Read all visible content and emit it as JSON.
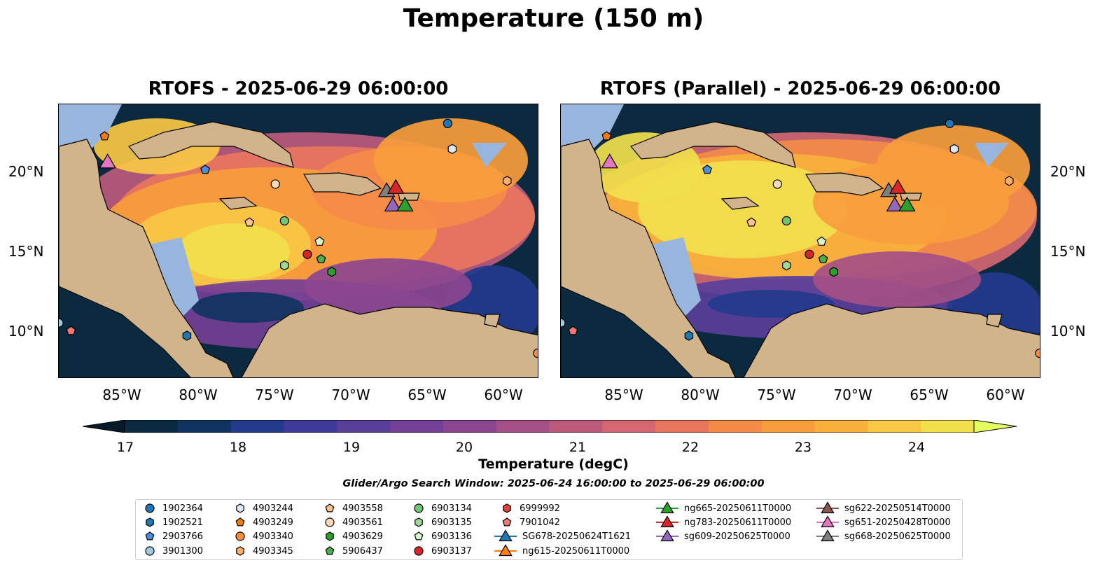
{
  "suptitle": "Temperature (150 m)",
  "panels": [
    {
      "title": "RTOFS - 2025-06-29 06:00:00"
    },
    {
      "title": "RTOFS (Parallel) - 2025-06-29 06:00:00"
    }
  ],
  "lon_ticks": [
    "85°W",
    "80°W",
    "75°W",
    "70°W",
    "65°W",
    "60°W"
  ],
  "lat_ticks": [
    "20°N",
    "15°N",
    "10°N"
  ],
  "colorbar": {
    "ticks": [
      "17",
      "18",
      "19",
      "20",
      "21",
      "22",
      "23",
      "24"
    ],
    "label": "Temperature (degC)",
    "range": [
      17,
      24.5
    ],
    "colors": [
      "#0b2a3f",
      "#10335f",
      "#243a8c",
      "#3e3a9a",
      "#5a3f9a",
      "#743f96",
      "#8c4690",
      "#a44f86",
      "#bd5a7c",
      "#d46770",
      "#e8765d",
      "#f58b49",
      "#f89d3c",
      "#f9b13c",
      "#f8c844",
      "#f1e04c"
    ],
    "extend_low": "#061a2a",
    "extend_high": "#e6ff60"
  },
  "search_window": "Glider/Argo Search Window: 2025-06-24 16:00:00 to 2025-06-29 06:00:00",
  "colors": {
    "land": "#d2b48c",
    "shelf": "#97b5dd",
    "ocean_deep": "#0b2a3f"
  },
  "legend": [
    {
      "label": "1902364",
      "marker": "circle",
      "color": "#1f77b4"
    },
    {
      "label": "1902521",
      "marker": "hexagon",
      "color": "#1f77b4"
    },
    {
      "label": "2903766",
      "marker": "pentagon",
      "color": "#4a90d9"
    },
    {
      "label": "3901300",
      "marker": "circle",
      "color": "#9ecae1"
    },
    {
      "label": "4903244",
      "marker": "hexagon",
      "color": "#dbe9f6"
    },
    {
      "label": "4903249",
      "marker": "pentagon",
      "color": "#f07c0c"
    },
    {
      "label": "4903340",
      "marker": "circle",
      "color": "#fd8d3c"
    },
    {
      "label": "4903345",
      "marker": "hexagon",
      "color": "#fdae6b"
    },
    {
      "label": "4903558",
      "marker": "pentagon",
      "color": "#fdc38d"
    },
    {
      "label": "4903561",
      "marker": "circle",
      "color": "#fdd9b5"
    },
    {
      "label": "4903629",
      "marker": "hexagon",
      "color": "#2ca02c"
    },
    {
      "label": "5906437",
      "marker": "pentagon",
      "color": "#4cae4c"
    },
    {
      "label": "6903134",
      "marker": "circle",
      "color": "#74c476"
    },
    {
      "label": "6903135",
      "marker": "hexagon",
      "color": "#a1d99b"
    },
    {
      "label": "6903136",
      "marker": "pentagon",
      "color": "#d4f5c8"
    },
    {
      "label": "6903137",
      "marker": "circle",
      "color": "#d62728"
    },
    {
      "label": "6999992",
      "marker": "hexagon",
      "color": "#e0413b"
    },
    {
      "label": "7901042",
      "marker": "pentagon",
      "color": "#f07575"
    },
    {
      "label": "SG678-20250624T1621",
      "marker": "triangle",
      "color": "#1f77b4"
    },
    {
      "label": "ng615-20250611T0000",
      "marker": "triangle",
      "color": "#ff7f0e"
    },
    {
      "label": "ng665-20250611T0000",
      "marker": "triangle",
      "color": "#2ca02c"
    },
    {
      "label": "ng783-20250611T0000",
      "marker": "triangle",
      "color": "#d62728"
    },
    {
      "label": "sg609-20250625T0000",
      "marker": "triangle",
      "color": "#9467bd"
    },
    {
      "label": "sg622-20250514T0000",
      "marker": "triangle",
      "color": "#8c564b"
    },
    {
      "label": "sg651-20250428T0000",
      "marker": "triangle",
      "color": "#e377c2"
    },
    {
      "label": "sg668-20250625T0000",
      "marker": "triangle",
      "color": "#7f7f7f"
    }
  ],
  "map_extent": {
    "lon": [
      -89,
      -57.5
    ],
    "lat": [
      7,
      24.2
    ]
  },
  "observations": [
    {
      "label": "1902364",
      "lon": -63.5,
      "lat": 23.0
    },
    {
      "label": "4903244",
      "lon": -63.2,
      "lat": 21.4
    },
    {
      "label": "4903249",
      "lon": -86.0,
      "lat": 22.2
    },
    {
      "label": "2903766",
      "lon": -79.4,
      "lat": 20.1
    },
    {
      "label": "4903561",
      "lon": -74.8,
      "lat": 19.2
    },
    {
      "label": "4903345",
      "lon": -59.6,
      "lat": 19.4
    },
    {
      "label": "4903558",
      "lon": -76.5,
      "lat": 16.8
    },
    {
      "label": "6903134",
      "lon": -74.2,
      "lat": 16.9
    },
    {
      "label": "6903137",
      "lon": -72.7,
      "lat": 14.8
    },
    {
      "label": "6903136",
      "lon": -71.9,
      "lat": 15.6
    },
    {
      "label": "6903135",
      "lon": -74.2,
      "lat": 14.1
    },
    {
      "label": "5906437",
      "lon": -71.8,
      "lat": 14.5
    },
    {
      "label": "4903629",
      "lon": -71.1,
      "lat": 13.7
    },
    {
      "label": "1902521",
      "lon": -80.6,
      "lat": 9.7
    },
    {
      "label": "3901300",
      "lon": -89.0,
      "lat": 10.5
    },
    {
      "label": "7901042",
      "lon": -88.2,
      "lat": 10.0
    },
    {
      "label": "4903340",
      "lon": -57.6,
      "lat": 8.6
    },
    {
      "label": "sg651-20250428T0000",
      "lon": -85.8,
      "lat": 20.5
    },
    {
      "label": "sg668-20250625T0000",
      "lon": -67.5,
      "lat": 18.7
    },
    {
      "label": "ng783-20250611T0000",
      "lon": -66.9,
      "lat": 18.9
    },
    {
      "label": "sg609-20250625T0000",
      "lon": -67.1,
      "lat": 17.8
    },
    {
      "label": "ng665-20250611T0000",
      "lon": -66.3,
      "lat": 17.8
    }
  ]
}
